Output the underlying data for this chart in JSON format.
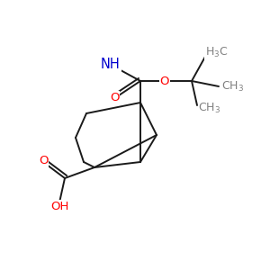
{
  "bg_color": "#ffffff",
  "bond_color": "#1a1a1a",
  "o_color": "#ff0000",
  "n_color": "#0000cd",
  "gray_color": "#808080",
  "lw": 1.4,
  "fs": 9.5,
  "fig_width": 3.0,
  "fig_height": 3.0,
  "dpi": 100,
  "xlim": [
    0,
    10
  ],
  "ylim": [
    0,
    10
  ]
}
